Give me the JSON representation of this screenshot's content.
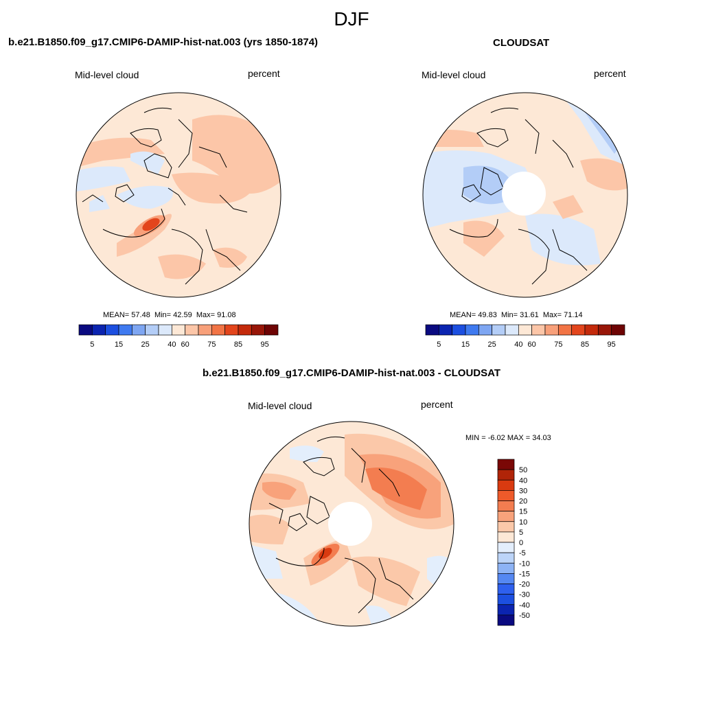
{
  "figure": {
    "title": "DJF"
  },
  "panels": [
    {
      "id": "model",
      "title": "b.e21.B1850.f09_g17.CMIP6-DAMIP-hist-nat.003 (yrs 1850-1874)",
      "left_label": "Mid-level cloud",
      "right_label": "percent",
      "stats": {
        "mean_label": "MEAN=",
        "mean": "57.48",
        "min_label": "Min=",
        "min": "42.59",
        "max_label": "Max=",
        "max": "91.08"
      },
      "colorbar_ticks": [
        "5",
        "15",
        "25",
        "40",
        "60",
        "75",
        "85",
        "95"
      ]
    },
    {
      "id": "obs",
      "title": "CLOUDSAT",
      "left_label": "Mid-level cloud",
      "right_label": "percent",
      "stats": {
        "mean_label": "MEAN=",
        "mean": "49.83",
        "min_label": "Min=",
        "min": "31.61",
        "max_label": "Max=",
        "max": "71.14"
      },
      "colorbar_ticks": [
        "5",
        "15",
        "25",
        "40",
        "60",
        "75",
        "85",
        "95"
      ]
    },
    {
      "id": "diff",
      "title": "b.e21.B1850.f09_g17.CMIP6-DAMIP-hist-nat.003 - CLOUDSAT",
      "left_label": "Mid-level cloud",
      "right_label": "percent",
      "stats": {
        "min_label": "MIN =",
        "min": "-6.02",
        "max_label": "MAX =",
        "max": "34.03"
      },
      "colorbar_ticks": [
        "50",
        "40",
        "30",
        "20",
        "15",
        "10",
        "5",
        "0",
        "-5",
        "-10",
        "-15",
        "-20",
        "-30",
        "-40",
        "-50"
      ]
    }
  ],
  "colors": {
    "abs_palette": [
      "#0a0a80",
      "#0b24b0",
      "#1c4fe0",
      "#3f7af0",
      "#7ea6f2",
      "#b3cdf7",
      "#dce9fb",
      "#fde8d6",
      "#fcc6a8",
      "#f8a07a",
      "#f27445",
      "#e3451c",
      "#c42a0b",
      "#981608",
      "#6e0404"
    ],
    "diff_palette": [
      "#0a0a80",
      "#0b24b0",
      "#1c4fe0",
      "#2e60ee",
      "#5588f2",
      "#8db3f5",
      "#bcd4f8",
      "#e3eefc",
      "#fde8d6",
      "#fbc8a9",
      "#f8a27b",
      "#f37d50",
      "#ee5a2a",
      "#d93a10",
      "#b02408",
      "#7a0806"
    ],
    "map_base": [
      "#fde8d6",
      "#fde8d6",
      "#fcc6a8"
    ]
  }
}
